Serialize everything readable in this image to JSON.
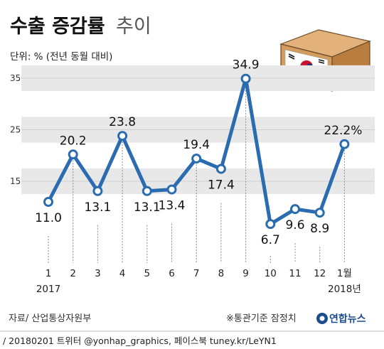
{
  "chart_data": {
    "type": "line",
    "title_bold": "수출 증감률",
    "title_light": "추이",
    "subtitle": "단위: % (전년 동월 대비)",
    "categories": [
      "1",
      "2",
      "3",
      "4",
      "5",
      "6",
      "7",
      "8",
      "9",
      "10",
      "11",
      "12",
      "1월"
    ],
    "year_labels": [
      {
        "index": 0,
        "text": "2017"
      },
      {
        "index": 12,
        "text": "2018년"
      }
    ],
    "values": [
      11.0,
      20.2,
      13.1,
      23.8,
      13.1,
      13.4,
      19.4,
      17.4,
      34.9,
      6.7,
      9.6,
      8.9,
      22.2
    ],
    "value_labels": [
      "11.0",
      "20.2",
      "13.1",
      "23.8",
      "13.1",
      "13.4",
      "19.4",
      "17.4",
      "34.9",
      "6.7",
      "9.6",
      "8.9",
      "22.2%"
    ],
    "y_ticks": [
      15,
      25,
      35
    ],
    "ylim": [
      5,
      38
    ],
    "grid": "banded",
    "line_color": "#2b6cb0",
    "band_color": "#e8e8e8",
    "source": "자료/ 산업통상자원부",
    "note": "※통관기준 잠정치",
    "logo": "연합뉴스",
    "footer": "/ 20180201 트위터 @yonhap_graphics, 페이스북 tuney.kr/LeYN1"
  }
}
